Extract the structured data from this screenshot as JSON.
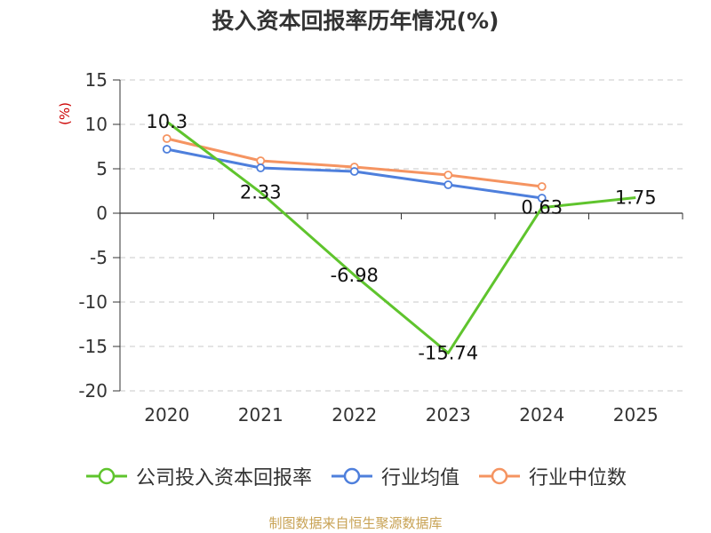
{
  "title": "投入资本回报率历年情况(%)",
  "unit_label": "(%)",
  "source": "制图数据来自恒生聚源数据库",
  "colors": {
    "company": "#5fc42d",
    "industry_avg": "#4e7fdc",
    "industry_median": "#f59461",
    "grid": "#c8c8c8",
    "axis": "#333333"
  },
  "chart_data": {
    "type": "line",
    "title": "投入资本回报率历年情况(%)",
    "xlabel": "",
    "ylabel": "(%)",
    "categories": [
      "2020",
      "2021",
      "2022",
      "2023",
      "2024",
      "2025"
    ],
    "ylim": [
      -20,
      15
    ],
    "yticks": [
      15,
      10,
      5,
      0,
      -5,
      -10,
      -15,
      -20
    ],
    "ytick_labels": [
      "15",
      "10",
      "5",
      "0",
      "-5",
      "-10",
      "-15",
      "-20"
    ],
    "series": [
      {
        "key": "company",
        "name": "公司投入资本回报率",
        "values": [
          10.3,
          2.33,
          -6.98,
          -15.74,
          0.63,
          1.75
        ],
        "labels": [
          "10.3",
          "2.33",
          "-6.98",
          "-15.74",
          "0.63",
          "1.75"
        ]
      },
      {
        "key": "industry_avg",
        "name": "行业均值",
        "values": [
          7.2,
          5.1,
          4.7,
          3.2,
          1.7,
          null
        ]
      },
      {
        "key": "industry_median",
        "name": "行业中位数",
        "values": [
          8.4,
          5.9,
          5.2,
          4.3,
          3.0,
          null
        ]
      }
    ],
    "legend_position": "bottom",
    "grid": true
  }
}
